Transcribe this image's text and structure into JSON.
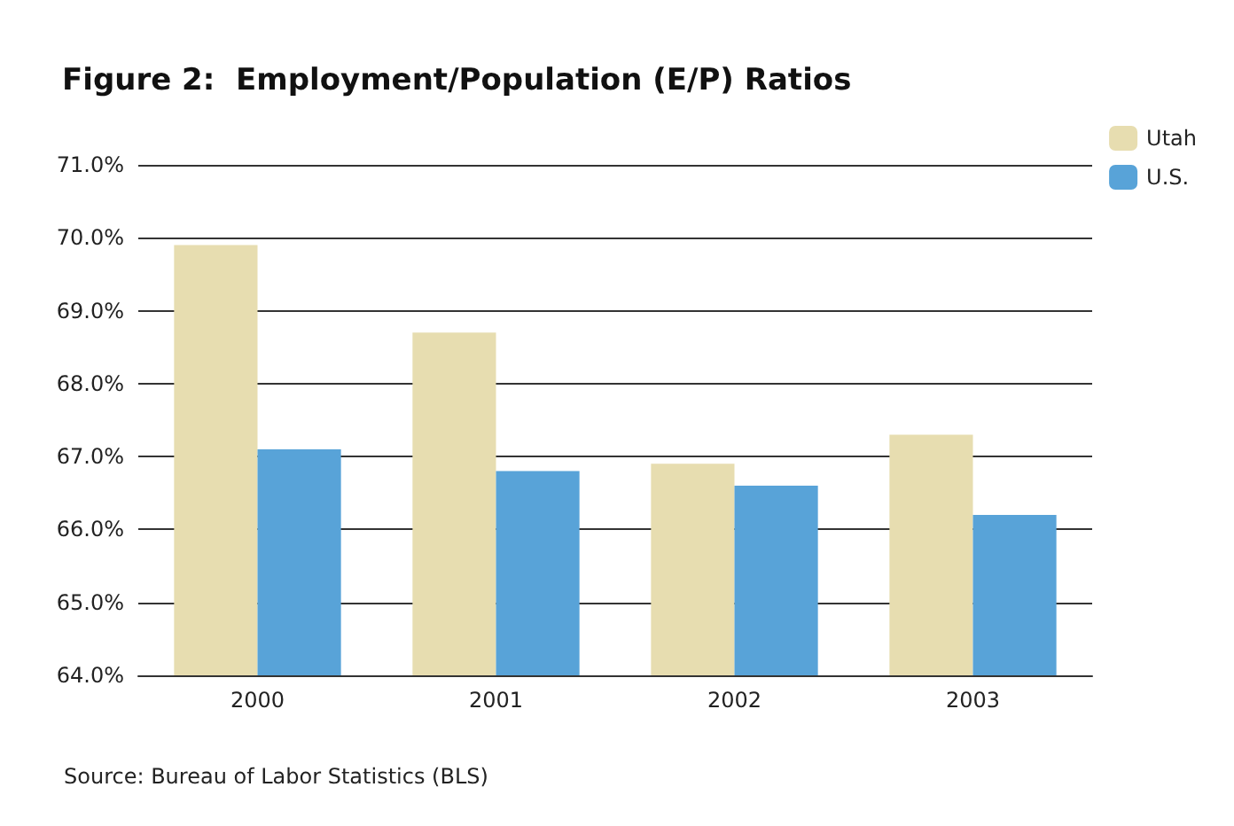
{
  "chart_data": {
    "type": "bar",
    "title": "Figure 2:  Employment/Population (E/P) Ratios",
    "categories": [
      "2000",
      "2001",
      "2002",
      "2003"
    ],
    "series": [
      {
        "name": "Utah",
        "color": "#e7ddb0",
        "values": [
          69.9,
          68.7,
          66.9,
          67.3
        ]
      },
      {
        "name": "U.S.",
        "color": "#58a3d8",
        "values": [
          67.1,
          66.8,
          66.6,
          66.2
        ]
      }
    ],
    "ylim": [
      64,
      71
    ],
    "yticks": [
      {
        "value": 64,
        "label": "64.0%"
      },
      {
        "value": 65,
        "label": "65.0%"
      },
      {
        "value": 66,
        "label": "66.0%"
      },
      {
        "value": 67,
        "label": "67.0%"
      },
      {
        "value": 68,
        "label": "68.0%"
      },
      {
        "value": 69,
        "label": "69.0%"
      },
      {
        "value": 70,
        "label": "70.0%"
      },
      {
        "value": 71,
        "label": "71.0%"
      }
    ],
    "grid": "y",
    "legend": "top right",
    "annotations": [
      "Source: Bureau of Labor Statistics (BLS)"
    ]
  }
}
